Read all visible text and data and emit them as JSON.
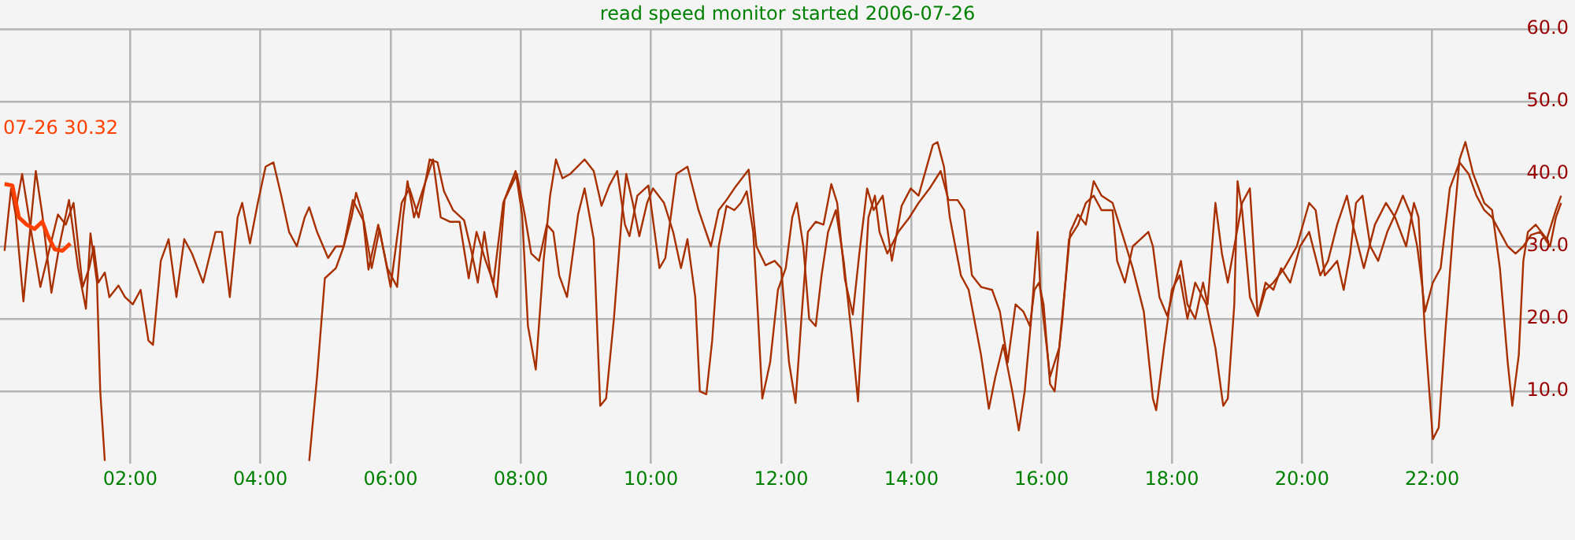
{
  "chart_data": {
    "type": "line",
    "title": "read speed monitor started 2006-07-26",
    "xlim": [
      0,
      24
    ],
    "xticks": [
      {
        "value": 2,
        "label": "02:00"
      },
      {
        "value": 4,
        "label": "04:00"
      },
      {
        "value": 6,
        "label": "06:00"
      },
      {
        "value": 8,
        "label": "08:00"
      },
      {
        "value": 10,
        "label": "10:00"
      },
      {
        "value": 12,
        "label": "12:00"
      },
      {
        "value": 14,
        "label": "14:00"
      },
      {
        "value": 16,
        "label": "16:00"
      },
      {
        "value": 18,
        "label": "18:00"
      },
      {
        "value": 20,
        "label": "20:00"
      },
      {
        "value": 22,
        "label": "22:00"
      }
    ],
    "ylim": [
      0,
      60
    ],
    "yticks": [
      {
        "value": 10,
        "label": "10.0"
      },
      {
        "value": 20,
        "label": "20.0"
      },
      {
        "value": 30,
        "label": "30.0"
      },
      {
        "value": 40,
        "label": "40.0"
      },
      {
        "value": 50,
        "label": "50.0"
      },
      {
        "value": 60,
        "label": "60.0"
      }
    ],
    "grid": true,
    "legend": false,
    "marker": "none",
    "line_style": "solid",
    "annotations": [
      "07-26 30.32"
    ],
    "series": [
      {
        "color": "#a83000",
        "x": [
          0.07,
          0.17,
          0.24,
          0.36,
          0.46,
          0.55,
          0.65,
          0.79,
          0.91,
          1.06,
          1.2,
          1.32,
          1.39,
          1.49,
          1.54,
          1.61,
          3.0,
          4.75,
          4.87,
          4.99,
          5.16,
          5.28,
          5.4,
          5.47,
          5.57,
          5.66,
          5.81,
          5.95,
          6.1,
          6.19,
          6.26,
          6.36,
          6.48,
          6.65,
          6.77,
          6.91,
          7.06,
          7.2,
          7.32,
          7.46,
          7.58,
          7.73,
          7.92,
          8.02,
          8.11,
          8.23,
          8.35,
          8.45,
          8.54,
          8.64,
          8.76,
          8.98,
          9.12,
          9.24,
          9.36,
          9.48,
          9.6,
          9.67,
          9.79,
          9.96,
          10.13,
          10.22,
          10.39,
          10.56,
          10.73,
          10.92,
          11.04,
          11.16,
          11.28,
          11.5,
          11.62,
          11.76,
          11.9,
          12.0,
          12.12,
          12.22,
          12.31,
          12.41,
          12.53,
          12.65,
          12.77,
          12.86,
          12.98,
          13.1,
          13.2,
          13.32,
          13.42,
          13.56,
          13.7,
          13.85,
          13.99,
          14.11,
          14.33,
          14.4,
          14.5,
          14.59,
          14.76,
          14.88,
          15.07,
          15.19,
          15.29,
          15.41,
          15.55,
          15.65,
          15.74,
          15.84,
          15.94,
          15.98,
          16.13,
          16.27,
          16.44,
          16.56,
          16.68,
          16.8,
          16.92,
          17.09,
          17.23,
          17.4,
          17.57,
          17.71,
          17.76,
          17.88,
          18.0,
          18.12,
          18.24,
          18.36,
          18.53,
          18.67,
          18.79,
          18.86,
          18.96,
          19.01,
          19.08,
          19.2,
          19.32,
          19.44,
          19.56,
          19.68,
          19.82,
          19.97,
          20.11,
          20.28,
          20.4,
          20.54,
          20.69,
          20.78,
          20.95,
          21.12,
          21.29,
          21.43,
          21.6,
          21.72,
          21.79,
          21.89,
          22.01,
          22.1,
          22.2,
          22.32,
          22.42,
          22.51,
          22.63,
          22.8,
          22.92,
          23.04,
          23.16,
          23.23,
          23.33,
          23.4,
          23.47,
          23.59,
          23.76,
          23.9,
          23.98
        ],
        "values": [
          29.4,
          38,
          34.4,
          22.4,
          32,
          40.4,
          34.4,
          23.6,
          30,
          36.4,
          27,
          21.4,
          31.8,
          25,
          10,
          0.4,
          null,
          0.4,
          12,
          25.6,
          27,
          30,
          34,
          37.4,
          34.4,
          26.8,
          33,
          27,
          24.4,
          34,
          39,
          34,
          37.4,
          42,
          34,
          33.4,
          33.4,
          25.6,
          32,
          28,
          25,
          36,
          40.4,
          34.4,
          19,
          13,
          28,
          37,
          42,
          39.4,
          40,
          42,
          40.4,
          35.6,
          38.4,
          40.4,
          33,
          31.4,
          37,
          38.4,
          27,
          28.4,
          40,
          41,
          35,
          30,
          35,
          36.4,
          38,
          40.6,
          30,
          27.4,
          28,
          27,
          14,
          8.4,
          20,
          32,
          33.4,
          33,
          38.6,
          36,
          25.4,
          20.6,
          29,
          38,
          35,
          37,
          28,
          35.6,
          38,
          37,
          44,
          44.4,
          41,
          34,
          26,
          24,
          15,
          7.6,
          12,
          16.4,
          10,
          4.6,
          10,
          20,
          32,
          24,
          12,
          16,
          32,
          34.4,
          33,
          39,
          37,
          36,
          32,
          27,
          21,
          9,
          7.4,
          16,
          24,
          26,
          20,
          25,
          22,
          16,
          8,
          9,
          22,
          39,
          35,
          23,
          20.4,
          25,
          24,
          27,
          25,
          30,
          32,
          26,
          28,
          33,
          37,
          33,
          27,
          33,
          36,
          34,
          30,
          36,
          34,
          18,
          3.4,
          5,
          18,
          32,
          42,
          44.4,
          40,
          36,
          35,
          27,
          14,
          8,
          15,
          28,
          32,
          33,
          31,
          35,
          37
        ]
      },
      {
        "color": "#a83000",
        "x": [
          0.24,
          0.34,
          0.48,
          0.62,
          0.77,
          0.89,
          1.01,
          1.13,
          1.27,
          1.37,
          1.44,
          1.51,
          1.61,
          1.68,
          1.82,
          1.92,
          2.04,
          2.16,
          2.28,
          2.35,
          2.47,
          2.59,
          2.71,
          2.83,
          2.95,
          3.12,
          3.31,
          3.41,
          3.53,
          3.65,
          3.72,
          3.84,
          3.96,
          4.08,
          4.2,
          4.32,
          4.44,
          4.56,
          4.68,
          4.75,
          4.87,
          5.04,
          5.16,
          5.28,
          5.42,
          5.59,
          5.71,
          5.83,
          6.0,
          6.17,
          6.29,
          6.43,
          6.6,
          6.72,
          6.82,
          6.96,
          7.13,
          7.25,
          7.34,
          7.44,
          7.54,
          7.63,
          7.75,
          7.94,
          8.06,
          8.16,
          8.28,
          8.4,
          8.5,
          8.59,
          8.71,
          8.88,
          8.98,
          9.12,
          9.22,
          9.31,
          9.43,
          9.55,
          9.62,
          9.72,
          9.82,
          9.94,
          10.03,
          10.2,
          10.34,
          10.46,
          10.56,
          10.68,
          10.75,
          10.85,
          10.94,
          11.04,
          11.16,
          11.28,
          11.38,
          11.47,
          11.57,
          11.64,
          11.71,
          11.83,
          11.95,
          12.07,
          12.17,
          12.24,
          12.34,
          12.43,
          12.53,
          12.62,
          12.72,
          12.84,
          12.96,
          13.08,
          13.18,
          13.25,
          13.34,
          13.44,
          13.51,
          13.63,
          13.8,
          13.97,
          14.11,
          14.28,
          14.45,
          14.57,
          14.71,
          14.81,
          14.93,
          15.07,
          15.24,
          15.36,
          15.48,
          15.6,
          15.72,
          15.82,
          15.89,
          15.96,
          16.03,
          16.13,
          16.2,
          16.32,
          16.42,
          16.56,
          16.68,
          16.8,
          16.92,
          17.09,
          17.16,
          17.28,
          17.4,
          17.52,
          17.64,
          17.71,
          17.81,
          17.93,
          18.05,
          18.14,
          18.24,
          18.36,
          18.48,
          18.55,
          18.67,
          18.77,
          18.86,
          18.96,
          19.08,
          19.2,
          19.32,
          19.44,
          19.56,
          19.73,
          19.92,
          20.11,
          20.21,
          20.35,
          20.45,
          20.54,
          20.64,
          20.74,
          20.83,
          20.93,
          21.05,
          21.17,
          21.31,
          21.46,
          21.55,
          21.67,
          21.77,
          21.84,
          21.89,
          22.01,
          22.13,
          22.27,
          22.42,
          22.56,
          22.68,
          22.8,
          22.92,
          23.04,
          23.16,
          23.28,
          23.4,
          23.52,
          23.66,
          23.81,
          23.9,
          23.98
        ],
        "values": [
          35,
          40,
          32,
          24.4,
          30,
          34.4,
          33,
          36,
          24.4,
          27,
          30,
          25,
          26.4,
          23,
          24.6,
          23,
          22,
          24,
          17,
          16.4,
          28,
          31,
          23,
          31,
          29,
          25,
          32,
          32,
          23,
          34,
          36,
          30.4,
          36,
          41,
          41.6,
          37,
          32,
          30,
          34,
          35.4,
          32,
          28.4,
          30,
          30,
          36.4,
          33.4,
          27,
          32.4,
          24.4,
          36,
          38,
          34,
          42,
          41.6,
          37.6,
          35,
          33.6,
          29,
          25,
          32,
          26,
          23,
          36.4,
          40,
          34.4,
          29,
          28,
          33,
          32,
          26,
          23,
          34.4,
          38,
          31,
          8,
          9,
          20,
          34,
          40,
          36,
          31.4,
          36,
          38,
          36,
          32,
          27,
          31,
          23,
          10,
          9.6,
          17,
          30,
          35.6,
          35,
          36,
          37.6,
          32,
          21,
          9,
          14,
          24,
          27,
          34,
          36,
          30,
          20,
          19,
          26,
          32,
          35,
          28,
          18,
          8.6,
          20,
          34,
          37,
          32,
          29,
          32,
          34,
          36,
          38,
          40.4,
          36.4,
          36.4,
          35,
          26,
          24.4,
          24,
          21,
          14,
          22,
          21,
          19,
          24,
          25,
          22,
          11,
          10,
          20,
          31,
          33,
          36,
          37,
          35,
          35,
          28,
          25,
          30,
          31,
          32,
          30,
          23,
          20.4,
          25,
          28,
          22,
          20,
          25,
          22,
          36,
          29,
          25,
          30,
          36,
          38,
          20.4,
          24,
          25,
          27,
          30,
          36,
          35,
          26,
          27,
          28,
          24,
          29,
          36,
          37,
          30,
          28,
          32,
          35,
          37,
          34.4,
          30,
          25,
          21,
          25,
          27,
          38,
          41.6,
          40,
          37,
          35,
          34,
          32,
          30,
          29,
          30,
          31.6,
          32,
          30,
          34,
          36
        ]
      },
      {
        "color": "#ff4000",
        "x": [
          0.07,
          0.19,
          0.29,
          0.41,
          0.53,
          0.65,
          0.74,
          0.84,
          0.96,
          1.08
        ],
        "values": [
          38.6,
          38.4,
          34,
          33,
          32.4,
          33.4,
          31.4,
          29.6,
          29.4,
          30.4
        ]
      }
    ]
  }
}
